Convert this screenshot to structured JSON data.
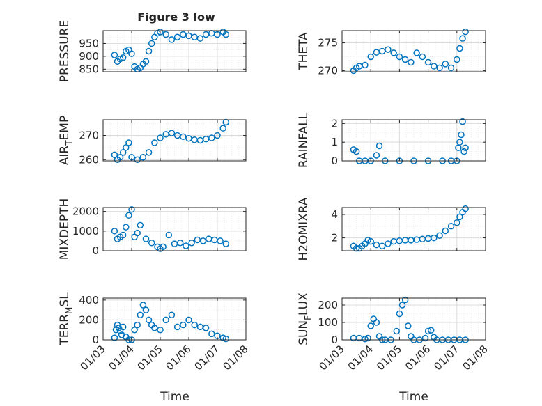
{
  "figure": {
    "title": "Figure 3 low",
    "xlabel": "Time"
  },
  "chart_data": [
    {
      "type": "scatter",
      "ylabel": "PRESSURE",
      "yticks": [
        850,
        900,
        950
      ],
      "ylim": [
        840,
        1000
      ],
      "series": [
        {
          "x": [
            3.4,
            3.5,
            3.6,
            3.7,
            3.8,
            3.9,
            4.0,
            4.1,
            4.2,
            4.3,
            4.4,
            4.5,
            4.6,
            4.7,
            4.8,
            4.9,
            5.0,
            5.2,
            5.4,
            5.6,
            5.8,
            6.0,
            6.2,
            6.4,
            6.6,
            6.8,
            7.0,
            7.2,
            7.3
          ],
          "y": [
            905,
            880,
            890,
            895,
            920,
            925,
            910,
            860,
            850,
            855,
            870,
            880,
            920,
            950,
            975,
            990,
            995,
            985,
            965,
            975,
            985,
            980,
            975,
            970,
            985,
            990,
            985,
            995,
            985
          ]
        }
      ]
    },
    {
      "type": "scatter",
      "ylabel": "THETA",
      "yticks": [
        270,
        275
      ],
      "ylim": [
        269.8,
        277.2
      ],
      "series": [
        {
          "x": [
            3.4,
            3.5,
            3.6,
            3.8,
            4.0,
            4.2,
            4.4,
            4.6,
            4.8,
            5.0,
            5.2,
            5.4,
            5.6,
            5.8,
            6.0,
            6.2,
            6.4,
            6.6,
            6.8,
            7.0,
            7.1,
            7.2,
            7.3
          ],
          "y": [
            270,
            270.5,
            270.8,
            271,
            272.5,
            273.3,
            273.5,
            273.8,
            273.2,
            272.5,
            272.0,
            271.5,
            273.2,
            272.5,
            271.5,
            270.8,
            270.5,
            271.2,
            270.5,
            272.0,
            274.0,
            275.8,
            277.0
          ]
        }
      ]
    },
    {
      "type": "scatter",
      "ylabel": "AIR",
      "ylabel_sub": "T",
      "ylabel_rest": "EMP",
      "yticks": [
        260,
        270
      ],
      "ylim": [
        259.5,
        276.5
      ],
      "series": [
        {
          "x": [
            3.4,
            3.5,
            3.6,
            3.7,
            3.8,
            3.9,
            4.0,
            4.2,
            4.4,
            4.6,
            4.8,
            5.0,
            5.2,
            5.4,
            5.6,
            5.8,
            6.0,
            6.2,
            6.4,
            6.6,
            6.8,
            7.0,
            7.2,
            7.3
          ],
          "y": [
            262,
            260,
            261,
            263,
            265,
            267,
            261,
            260,
            261,
            263,
            267,
            269,
            270.5,
            271,
            270,
            269.5,
            268.8,
            268.2,
            268,
            268.5,
            269,
            270,
            273,
            275.5
          ]
        }
      ]
    },
    {
      "type": "scatter",
      "ylabel": "RAINFALL",
      "yticks": [
        0,
        1,
        2
      ],
      "ylim": [
        0,
        2.2
      ],
      "series": [
        {
          "x": [
            3.4,
            3.5,
            3.6,
            3.8,
            4.0,
            4.2,
            4.3,
            4.5,
            5.0,
            5.5,
            6.0,
            6.5,
            6.8,
            7.0,
            7.05,
            7.1,
            7.15,
            7.2,
            7.25,
            7.3
          ],
          "y": [
            0.6,
            0.5,
            0,
            0,
            0,
            0.3,
            0.8,
            0,
            0,
            0,
            0,
            0,
            0,
            0,
            0.7,
            1.0,
            1.4,
            2.1,
            0.5,
            0.7
          ]
        }
      ]
    },
    {
      "type": "scatter",
      "ylabel": "MIXDEPTH",
      "yticks": [
        0,
        1000,
        2000
      ],
      "ylim": [
        0,
        2200
      ],
      "series": [
        {
          "x": [
            3.4,
            3.5,
            3.6,
            3.7,
            3.8,
            3.9,
            4.0,
            4.1,
            4.2,
            4.3,
            4.5,
            4.7,
            4.9,
            5.0,
            5.1,
            5.3,
            5.5,
            5.7,
            5.9,
            6.1,
            6.3,
            6.5,
            6.7,
            6.9,
            7.1,
            7.3
          ],
          "y": [
            1000,
            600,
            700,
            800,
            1200,
            1800,
            2100,
            700,
            900,
            1300,
            600,
            400,
            200,
            100,
            200,
            800,
            350,
            400,
            250,
            400,
            550,
            500,
            600,
            550,
            500,
            350
          ]
        }
      ]
    },
    {
      "type": "scatter",
      "ylabel": "H2OMIXRA",
      "yticks": [
        2,
        4
      ],
      "ylim": [
        0.9,
        4.6
      ],
      "series": [
        {
          "x": [
            3.4,
            3.5,
            3.6,
            3.7,
            3.8,
            3.9,
            4.0,
            4.2,
            4.4,
            4.6,
            4.8,
            5.0,
            5.2,
            5.4,
            5.6,
            5.8,
            6.0,
            6.2,
            6.4,
            6.6,
            6.8,
            7.0,
            7.1,
            7.2,
            7.3
          ],
          "y": [
            1.3,
            1.1,
            1.1,
            1.3,
            1.5,
            1.8,
            1.7,
            1.4,
            1.3,
            1.5,
            1.7,
            1.75,
            1.8,
            1.8,
            1.85,
            1.9,
            1.95,
            2.0,
            2.2,
            2.6,
            3.0,
            3.3,
            3.8,
            4.2,
            4.5
          ]
        }
      ]
    },
    {
      "type": "scatter",
      "ylabel": "TERR",
      "ylabel_sub": "M",
      "ylabel_rest": "SL",
      "yticks": [
        0,
        200,
        400
      ],
      "ylim": [
        0,
        420
      ],
      "series": [
        {
          "x": [
            3.4,
            3.45,
            3.5,
            3.55,
            3.6,
            3.65,
            3.7,
            3.8,
            3.9,
            4.0,
            4.1,
            4.2,
            4.3,
            4.4,
            4.5,
            4.6,
            4.7,
            4.8,
            5.0,
            5.2,
            5.4,
            5.6,
            5.8,
            6.0,
            6.2,
            6.4,
            6.6,
            6.8,
            7.0,
            7.2,
            7.3
          ],
          "y": [
            20,
            100,
            150,
            120,
            90,
            50,
            130,
            30,
            0,
            0,
            100,
            150,
            250,
            350,
            300,
            200,
            150,
            120,
            100,
            200,
            250,
            130,
            150,
            200,
            150,
            130,
            120,
            60,
            40,
            20,
            10
          ]
        }
      ]
    },
    {
      "type": "scatter",
      "ylabel": "SUN",
      "ylabel_sub": "F",
      "ylabel_rest": "LUX",
      "yticks": [
        0,
        100,
        200
      ],
      "ylim": [
        0,
        240
      ],
      "series": [
        {
          "x": [
            3.4,
            3.6,
            3.8,
            3.9,
            4.0,
            4.1,
            4.2,
            4.3,
            4.4,
            4.5,
            4.7,
            4.9,
            5.0,
            5.1,
            5.2,
            5.3,
            5.4,
            5.5,
            5.7,
            5.9,
            6.0,
            6.1,
            6.2,
            6.3,
            6.5,
            6.7,
            6.9,
            7.1,
            7.3
          ],
          "y": [
            10,
            10,
            5,
            10,
            80,
            120,
            100,
            20,
            0,
            0,
            0,
            50,
            150,
            200,
            230,
            80,
            20,
            0,
            0,
            10,
            50,
            55,
            15,
            0,
            0,
            0,
            0,
            0,
            0
          ]
        }
      ]
    }
  ],
  "xticks": [
    "01/03",
    "01/04",
    "01/05",
    "01/06",
    "01/07",
    "01/08"
  ],
  "xlim": [
    3,
    8
  ],
  "colors": {
    "marker": "#0072BD",
    "axis": "#262626",
    "grid": "#dcdcdc"
  }
}
